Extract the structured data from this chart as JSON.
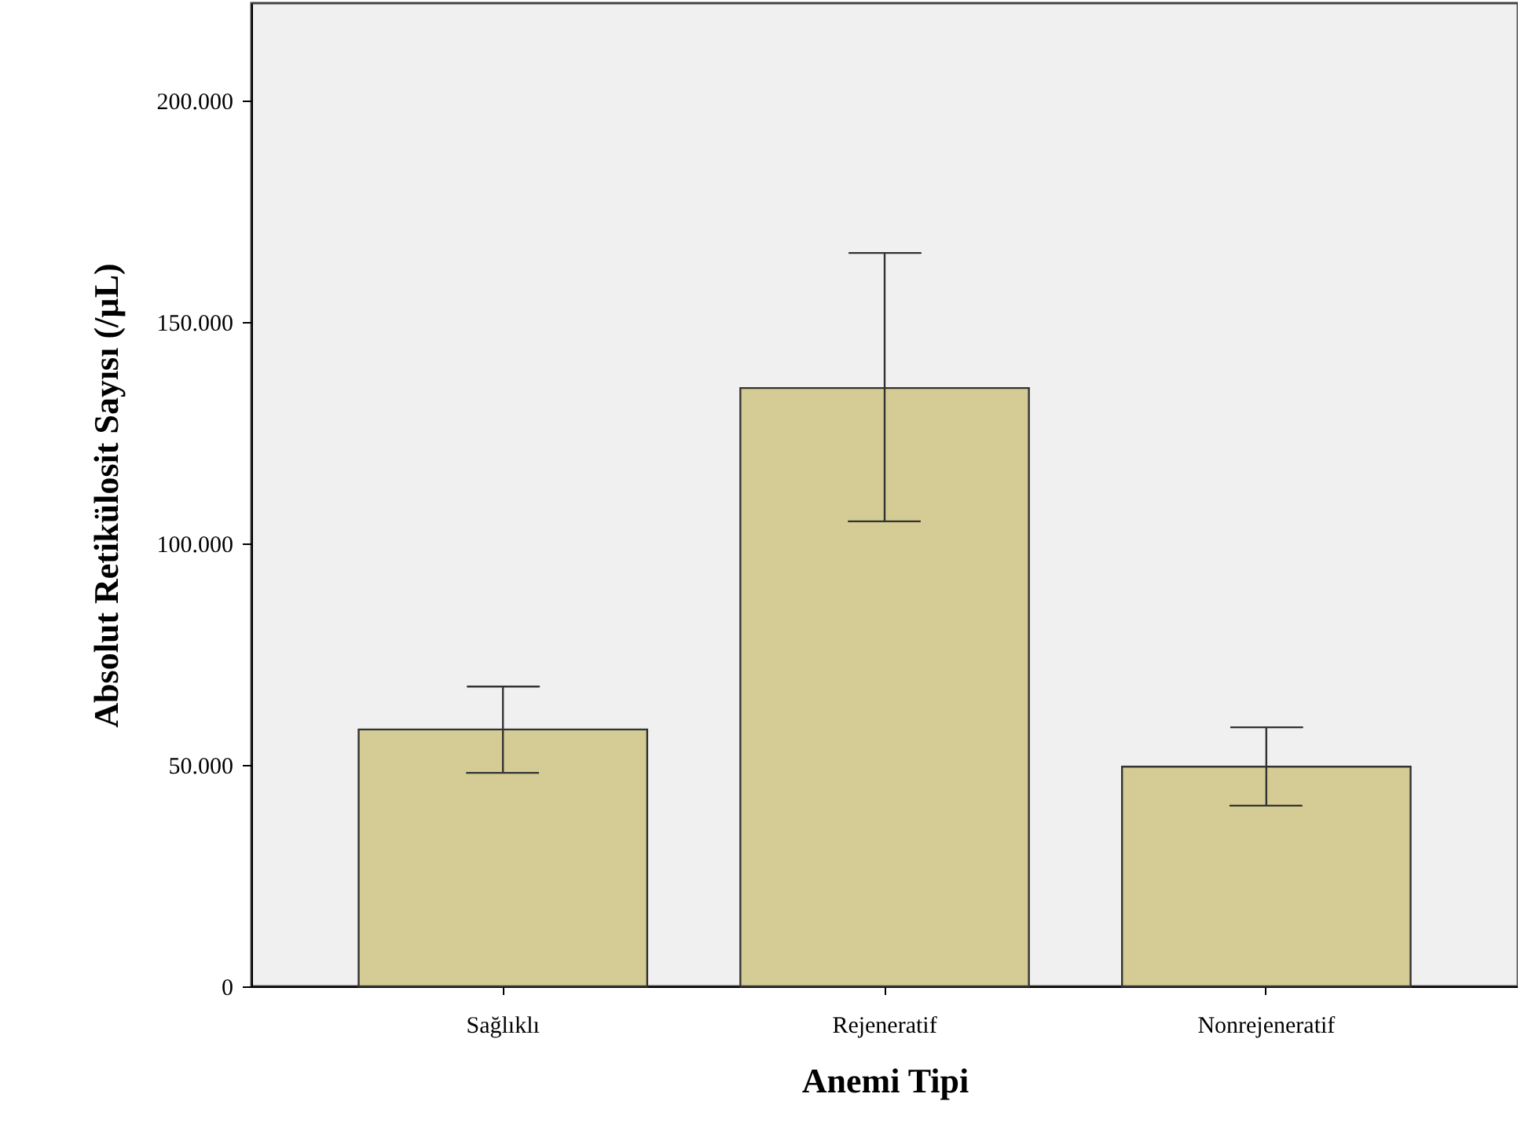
{
  "chart_data": {
    "type": "bar",
    "xlabel": "Anemi Tipi",
    "ylabel": "Absolut Retikülosit Sayısı (/µL)",
    "categories": [
      "Sağlıklı",
      "Rejeneratif",
      "Nonrejeneratif"
    ],
    "values": [
      58000,
      135100,
      49600
    ],
    "errors": [
      [
        48200,
        67700
      ],
      [
        105000,
        165600
      ],
      [
        40800,
        58500
      ]
    ],
    "color": "#d4cc94",
    "ylim": [
      0,
      222000
    ],
    "yticks": [
      0,
      {
        "value": 50000,
        "label": "50.000"
      },
      {
        "value": 100000,
        "label": "100.000"
      },
      {
        "value": 150000,
        "label": "150.000"
      },
      {
        "value": 200000,
        "label": "200.000"
      }
    ],
    "grid": false
  }
}
